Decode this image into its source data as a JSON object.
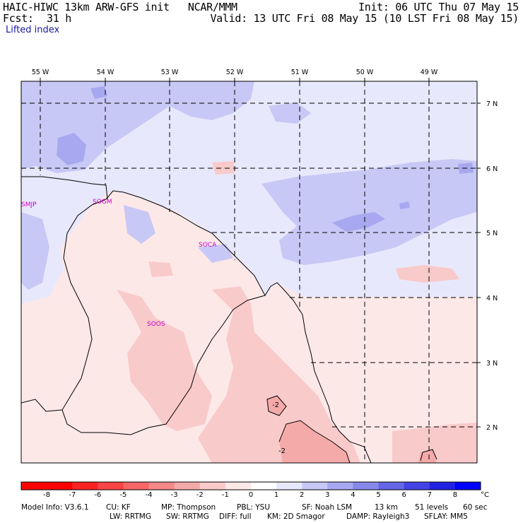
{
  "header": {
    "model_line": "HAIC-HIWC 13km ARW-GFS init   NCAR/MMM",
    "fcst_label": "Fcst:",
    "fcst_value": "31 h",
    "init_line": "Init: 06 UTC Thu 07 May 15",
    "valid_line": "Valid: 13 UTC Fri 08 May 15 (10 LST Fri 08 May 15)",
    "field_name": "Lifted index"
  },
  "map": {
    "lon_labels": [
      "55 W",
      "54 W",
      "53 W",
      "52 W",
      "51 W",
      "50 W",
      "49 W"
    ],
    "lat_labels": [
      "7 N",
      "6 N",
      "5 N",
      "4 N",
      "3 N",
      "2 N"
    ],
    "stations": [
      "SMJP",
      "SOGM",
      "SOCA",
      "SOOS"
    ],
    "contour_labels": [
      "-2",
      "-2"
    ],
    "colors": {
      "blue_light": "#e8e8fc",
      "blue_mid": "#c8c8f6",
      "blue_strong": "#a8a8f0",
      "pink_light": "#fde8e8",
      "pink_mid": "#f9caca",
      "pink_strong": "#f5aaaa",
      "station": "#cc00cc"
    }
  },
  "colorbar": {
    "labels": [
      "-8",
      "-7",
      "-6",
      "-5",
      "-4",
      "-3",
      "-2",
      "-1",
      "0",
      "1",
      "2",
      "3",
      "4",
      "5",
      "6",
      "7",
      "8"
    ],
    "unit": "°C",
    "colors": [
      "#ff0000",
      "#fd2222",
      "#fb4444",
      "#f96666",
      "#f78888",
      "#f5aaaa",
      "#f9caca",
      "#fde8e8",
      "#ffffff",
      "#e8e8fc",
      "#c8c8f6",
      "#a8a8f0",
      "#8888ec",
      "#6666e8",
      "#4444e6",
      "#2222e4",
      "#0000ff"
    ]
  },
  "footer": {
    "row1": [
      "Model Info: V3.6.1",
      "CU: KF",
      "MP: Thompson",
      "PBL: YSU",
      "SF: Noah LSM",
      "13 km",
      "51 levels",
      "60 sec"
    ],
    "row2": [
      "LW: RRTMG",
      "SW: RRTMG",
      "DIFF: full",
      "KM: 2D Smagor",
      "DAMP: Rayleigh3",
      "SFLAY: MM5"
    ]
  }
}
